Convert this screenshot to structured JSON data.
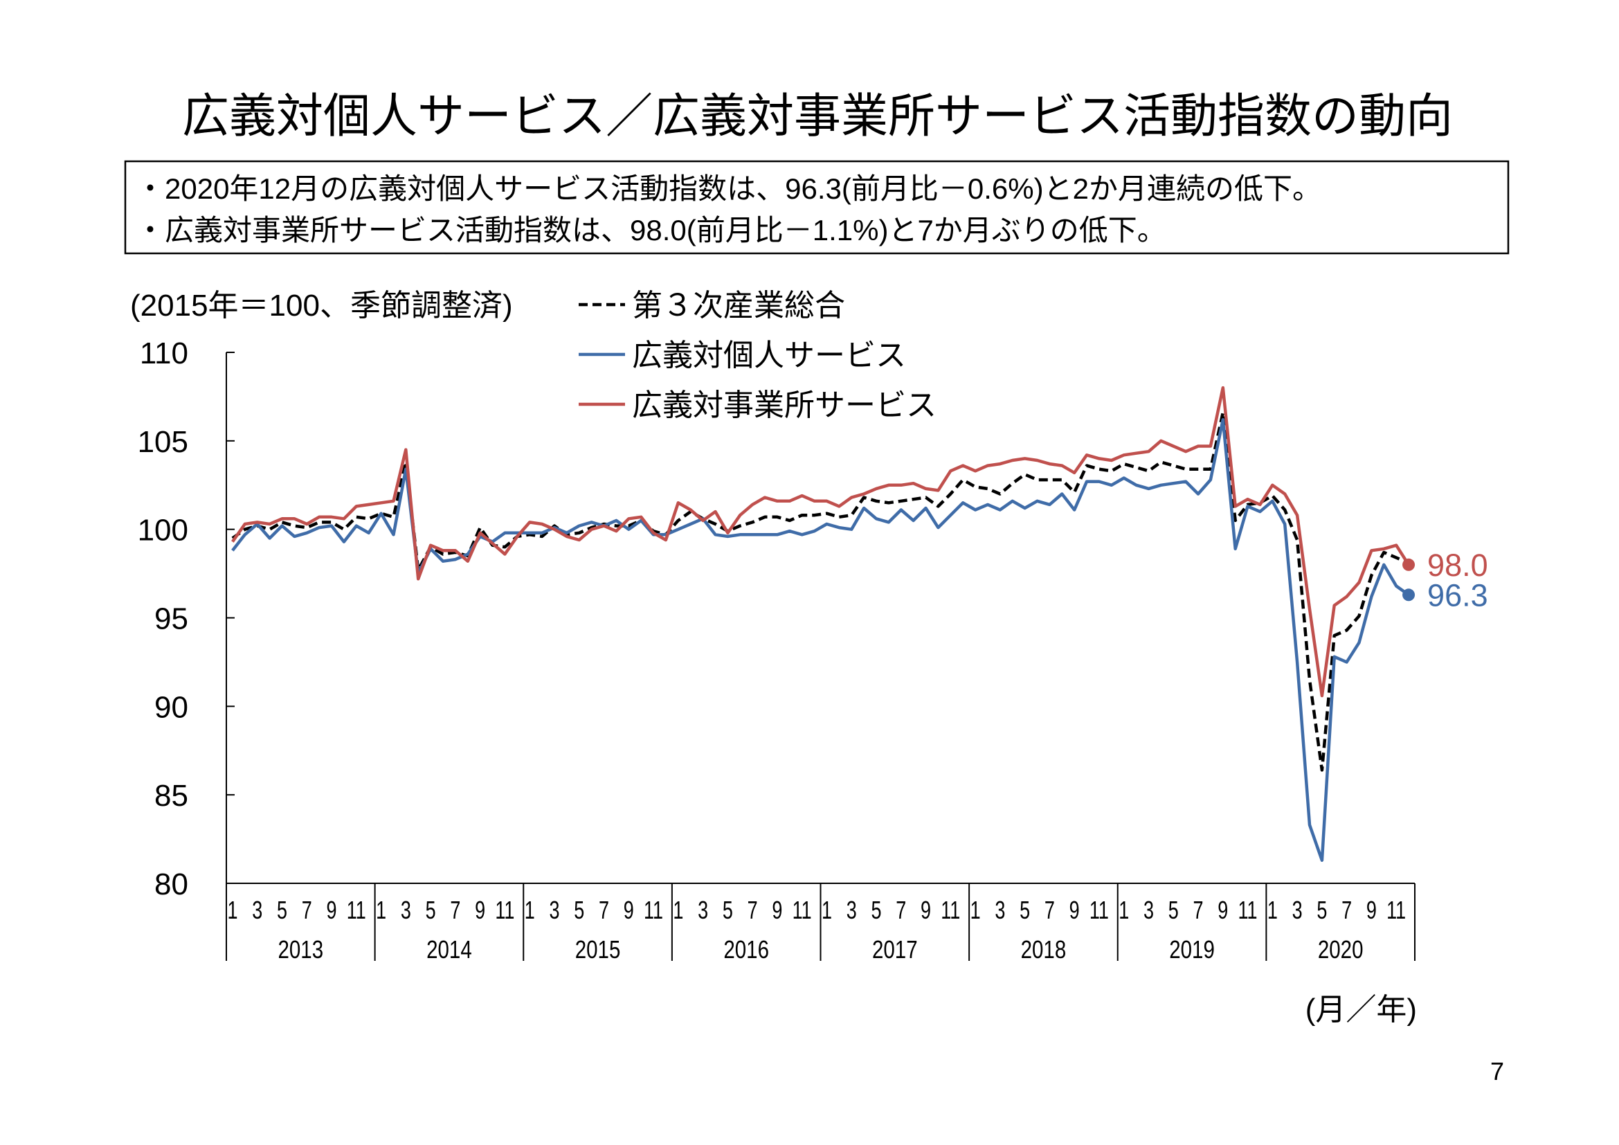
{
  "page": {
    "title": "広義対個人サービス／広義対事業所サービス活動指数の動向",
    "summary": [
      "・2020年12月の広義対個人サービス活動指数は、96.3(前月比－0.6%)と2か月連続の低下。",
      "・広義対事業所サービス活動指数は、98.0(前月比－1.1%)と7か月ぶりの低下。"
    ],
    "page_number": "7"
  },
  "chart_data": {
    "type": "line",
    "unit_note": "(2015年＝100、季節調整済)",
    "xlabel": "(月／年)",
    "ylim": [
      80,
      110
    ],
    "y_ticks": [
      110,
      105,
      100,
      95,
      90,
      85,
      80
    ],
    "x_month_tick_labels": [
      "1",
      "3",
      "5",
      "7",
      "9",
      "11"
    ],
    "x_year_labels": [
      "2013",
      "2014",
      "2015",
      "2016",
      "2017",
      "2018",
      "2019",
      "2020"
    ],
    "grid": false,
    "legend_position": "top-left",
    "x": [
      "2013-01",
      "2013-02",
      "2013-03",
      "2013-04",
      "2013-05",
      "2013-06",
      "2013-07",
      "2013-08",
      "2013-09",
      "2013-10",
      "2013-11",
      "2013-12",
      "2014-01",
      "2014-02",
      "2014-03",
      "2014-04",
      "2014-05",
      "2014-06",
      "2014-07",
      "2014-08",
      "2014-09",
      "2014-10",
      "2014-11",
      "2014-12",
      "2015-01",
      "2015-02",
      "2015-03",
      "2015-04",
      "2015-05",
      "2015-06",
      "2015-07",
      "2015-08",
      "2015-09",
      "2015-10",
      "2015-11",
      "2015-12",
      "2016-01",
      "2016-02",
      "2016-03",
      "2016-04",
      "2016-05",
      "2016-06",
      "2016-07",
      "2016-08",
      "2016-09",
      "2016-10",
      "2016-11",
      "2016-12",
      "2017-01",
      "2017-02",
      "2017-03",
      "2017-04",
      "2017-05",
      "2017-06",
      "2017-07",
      "2017-08",
      "2017-09",
      "2017-10",
      "2017-11",
      "2017-12",
      "2018-01",
      "2018-02",
      "2018-03",
      "2018-04",
      "2018-05",
      "2018-06",
      "2018-07",
      "2018-08",
      "2018-09",
      "2018-10",
      "2018-11",
      "2018-12",
      "2019-01",
      "2019-02",
      "2019-03",
      "2019-04",
      "2019-05",
      "2019-06",
      "2019-07",
      "2019-08",
      "2019-09",
      "2019-10",
      "2019-11",
      "2019-12",
      "2020-01",
      "2020-02",
      "2020-03",
      "2020-04",
      "2020-05",
      "2020-06",
      "2020-07",
      "2020-08",
      "2020-09",
      "2020-10",
      "2020-11",
      "2020-12"
    ],
    "series": [
      {
        "name": "第３次産業総合",
        "color": "#000000",
        "style": "dashed",
        "values": [
          99.5,
          100.0,
          100.2,
          100.0,
          100.4,
          100.2,
          100.1,
          100.4,
          100.4,
          100.0,
          100.7,
          100.6,
          100.9,
          100.7,
          103.8,
          97.7,
          99.0,
          98.6,
          98.7,
          98.5,
          100.1,
          99.1,
          99.0,
          99.6,
          99.7,
          99.6,
          100.2,
          99.7,
          99.8,
          100.1,
          100.3,
          100.2,
          100.2,
          100.5,
          99.9,
          99.7,
          100.5,
          101.0,
          100.6,
          100.3,
          99.9,
          100.2,
          100.4,
          100.7,
          100.7,
          100.5,
          100.8,
          100.8,
          100.9,
          100.7,
          100.8,
          101.8,
          101.6,
          101.5,
          101.6,
          101.7,
          101.8,
          101.3,
          102.0,
          102.8,
          102.4,
          102.3,
          102.0,
          102.6,
          103.1,
          102.8,
          102.8,
          102.8,
          102.1,
          103.6,
          103.4,
          103.3,
          103.7,
          103.5,
          103.3,
          103.8,
          103.6,
          103.4,
          103.4,
          103.4,
          106.6,
          100.5,
          101.4,
          101.5,
          101.9,
          101.1,
          99.4,
          91.5,
          86.4,
          94.0,
          94.3,
          95.1,
          97.4,
          98.7,
          98.4,
          98.1
        ]
      },
      {
        "name": "広義対個人サービス",
        "color": "#3f6ca8",
        "style": "solid",
        "end_label": "96.3",
        "values": [
          98.8,
          99.7,
          100.3,
          99.5,
          100.2,
          99.6,
          99.8,
          100.1,
          100.2,
          99.3,
          100.2,
          99.8,
          100.9,
          99.7,
          103.4,
          97.5,
          98.9,
          98.2,
          98.3,
          98.6,
          99.6,
          99.3,
          99.8,
          99.8,
          99.8,
          99.8,
          100.1,
          99.8,
          100.2,
          100.4,
          100.2,
          100.5,
          100.0,
          100.5,
          99.7,
          99.7,
          100.0,
          100.3,
          100.6,
          99.7,
          99.6,
          99.7,
          99.7,
          99.7,
          99.7,
          99.9,
          99.7,
          99.9,
          100.3,
          100.1,
          100.0,
          101.2,
          100.6,
          100.4,
          101.1,
          100.5,
          101.2,
          100.1,
          100.8,
          101.5,
          101.1,
          101.4,
          101.1,
          101.6,
          101.2,
          101.6,
          101.4,
          102.0,
          101.1,
          102.7,
          102.7,
          102.5,
          102.9,
          102.5,
          102.3,
          102.5,
          102.6,
          102.7,
          102.0,
          102.8,
          106.2,
          98.9,
          101.3,
          101.0,
          101.6,
          100.3,
          92.5,
          83.3,
          81.3,
          92.8,
          92.5,
          93.6,
          96.2,
          98.0,
          96.8,
          96.3
        ]
      },
      {
        "name": "広義対事業所サービス",
        "color": "#c0504d",
        "style": "solid",
        "end_label": "98.0",
        "values": [
          99.3,
          100.3,
          100.4,
          100.3,
          100.6,
          100.6,
          100.3,
          100.7,
          100.7,
          100.6,
          101.3,
          101.4,
          101.5,
          101.6,
          104.5,
          97.2,
          99.1,
          98.8,
          98.8,
          98.2,
          99.8,
          99.2,
          98.6,
          99.6,
          100.4,
          100.3,
          100.0,
          99.6,
          99.4,
          100.0,
          100.2,
          99.9,
          100.6,
          100.7,
          99.8,
          99.4,
          101.5,
          101.1,
          100.5,
          101.0,
          99.8,
          100.8,
          101.4,
          101.8,
          101.6,
          101.6,
          101.9,
          101.6,
          101.6,
          101.3,
          101.8,
          102.0,
          102.3,
          102.5,
          102.5,
          102.6,
          102.3,
          102.2,
          103.3,
          103.6,
          103.3,
          103.6,
          103.7,
          103.9,
          104.0,
          103.9,
          103.7,
          103.6,
          103.2,
          104.2,
          104.0,
          103.9,
          104.2,
          104.3,
          104.4,
          105.0,
          104.7,
          104.4,
          104.7,
          104.7,
          108.0,
          101.3,
          101.7,
          101.4,
          102.5,
          102.0,
          100.8,
          95.5,
          90.6,
          95.7,
          96.2,
          97.0,
          98.8,
          98.9,
          99.1,
          98.0
        ]
      }
    ]
  }
}
